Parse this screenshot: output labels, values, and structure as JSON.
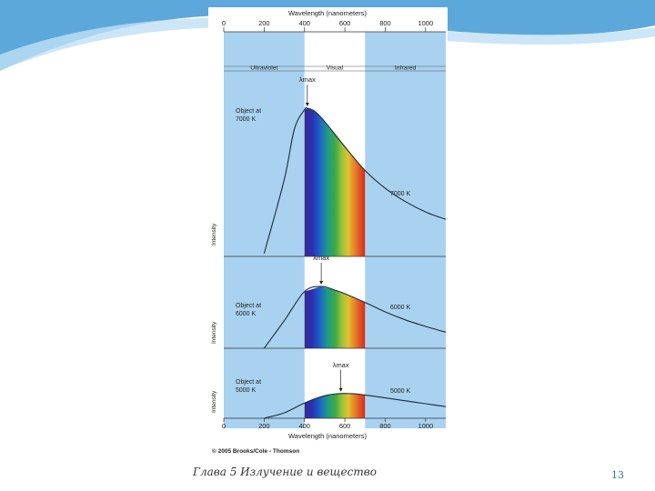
{
  "theme": {
    "accent": "#4a9fd6",
    "panel_blue": "#a8d2f0",
    "curve": "#1d2b3a"
  },
  "slide": {
    "footer_text": "Глава 5 Излучение и вещество",
    "page_number": "13"
  },
  "chart_data": {
    "type": "line",
    "title_top": "Wavelength (nanometers)",
    "xlabel": "Wavelength (nanometers)",
    "ylabel": "Intensity",
    "xlim": [
      0,
      1100
    ],
    "x_ticks": [
      0,
      200,
      400,
      600,
      800,
      1000
    ],
    "grid": false,
    "regions": [
      {
        "name": "Ultraviolet",
        "range": [
          0,
          400
        ]
      },
      {
        "name": "Visual",
        "range": [
          400,
          700
        ]
      },
      {
        "name": "Infrared",
        "range": [
          700,
          1100
        ]
      }
    ],
    "peak_label": "λmax",
    "copyright": "© 2005 Brooks/Cole - Thomson",
    "panels": [
      {
        "object_label_1": "Object at",
        "object_label_2": "7000 K",
        "curve_label": "7000 K",
        "temperature_K": 7000,
        "peak_nm": 414,
        "x": [
          200,
          300,
          350,
          400,
          414,
          450,
          500,
          600,
          700,
          800,
          900,
          1000,
          1100
        ],
        "y": [
          0.02,
          0.52,
          0.86,
          0.99,
          1.0,
          0.98,
          0.91,
          0.74,
          0.58,
          0.46,
          0.37,
          0.3,
          0.25
        ]
      },
      {
        "object_label_1": "Object at",
        "object_label_2": "6000 K",
        "curve_label": "6000 K",
        "temperature_K": 6000,
        "peak_nm": 483,
        "x": [
          200,
          300,
          400,
          483,
          550,
          600,
          700,
          800,
          900,
          1000,
          1100
        ],
        "y": [
          0.0,
          0.38,
          0.78,
          0.85,
          0.8,
          0.75,
          0.63,
          0.5,
          0.39,
          0.3,
          0.22
        ]
      },
      {
        "object_label_1": "Object at",
        "object_label_2": "5000 K",
        "curve_label": "5000 K",
        "temperature_K": 5000,
        "peak_nm": 580,
        "x": [
          200,
          300,
          400,
          500,
          580,
          650,
          700,
          800,
          900,
          1000,
          1100
        ],
        "y": [
          0.0,
          0.15,
          0.42,
          0.62,
          0.68,
          0.67,
          0.64,
          0.56,
          0.48,
          0.4,
          0.32
        ]
      }
    ]
  }
}
